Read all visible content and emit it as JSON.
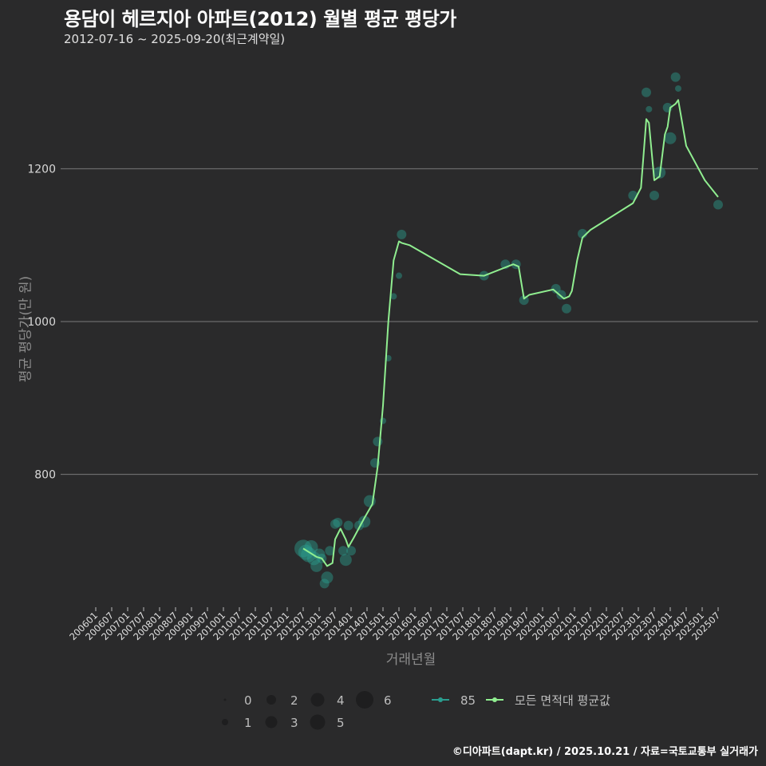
{
  "header": {
    "title": "용담이 헤르지아 아파트(2012) 월별 평균 평당가",
    "subtitle": "2012-07-16 ~ 2025-09-20(최근계약일)"
  },
  "footer": {
    "credit": "©디아파트(dapt.kr) / 2025.10.21 / 자료=국토교통부 실거래가"
  },
  "colors": {
    "background": "#2a2a2b",
    "grid": "#6b6b6b",
    "series_85": "#2a9d8f",
    "series_avg": "#90ee90",
    "point_fill": "#2a9d8f"
  },
  "chart_data": {
    "type": "line",
    "title": "용담이 헤르지아 아파트(2012) 월별 평균 평당가",
    "subtitle": "2012-07-16 ~ 2025-09-20(최근계약일)",
    "xlabel": "거래년월",
    "ylabel": "평균 평당가(만 원)",
    "yticks": [
      800,
      1000,
      1200
    ],
    "ylim": [
      630,
      1340
    ],
    "grid": "horizontal",
    "xticks": [
      "200601",
      "200607",
      "200701",
      "200707",
      "200801",
      "200807",
      "200901",
      "200907",
      "201001",
      "201007",
      "201101",
      "201107",
      "201201",
      "201207",
      "201301",
      "201307",
      "201401",
      "201407",
      "201501",
      "201507",
      "201601",
      "201607",
      "201701",
      "201707",
      "201801",
      "201807",
      "201901",
      "201907",
      "202001",
      "202007",
      "202101",
      "202107",
      "202201",
      "202207",
      "202301",
      "202307",
      "202401",
      "202407",
      "202501",
      "202507"
    ],
    "legend": {
      "size_title": "",
      "sizes": [
        "0",
        "1",
        "2",
        "3",
        "4",
        "5",
        "6"
      ],
      "series": [
        {
          "name": "85",
          "color": "#2a9d8f"
        },
        {
          "name": "모든 면적대 평균값",
          "color": "#90ee90"
        }
      ],
      "position": "bottom"
    },
    "series": [
      {
        "name": "85",
        "points": [
          {
            "x": "201207",
            "y": 703,
            "size": 6
          },
          {
            "x": "201208",
            "y": 698,
            "size": 5
          },
          {
            "x": "201209",
            "y": 695,
            "size": 5
          },
          {
            "x": "201210",
            "y": 705,
            "size": 4
          },
          {
            "x": "201211",
            "y": 690,
            "size": 4
          },
          {
            "x": "201212",
            "y": 680,
            "size": 3
          },
          {
            "x": "201301",
            "y": 695,
            "size": 3
          },
          {
            "x": "201302",
            "y": 690,
            "size": 2
          },
          {
            "x": "201303",
            "y": 657,
            "size": 2
          },
          {
            "x": "201304",
            "y": 665,
            "size": 3
          },
          {
            "x": "201305",
            "y": 700,
            "size": 2
          },
          {
            "x": "201307",
            "y": 735,
            "size": 2
          },
          {
            "x": "201308",
            "y": 737,
            "size": 2
          },
          {
            "x": "201310",
            "y": 700,
            "size": 2
          },
          {
            "x": "201311",
            "y": 688,
            "size": 3
          },
          {
            "x": "201312",
            "y": 733,
            "size": 2
          },
          {
            "x": "201401",
            "y": 700,
            "size": 2
          },
          {
            "x": "201404",
            "y": 733,
            "size": 2
          },
          {
            "x": "201406",
            "y": 738,
            "size": 3
          },
          {
            "x": "201408",
            "y": 765,
            "size": 3
          },
          {
            "x": "201410",
            "y": 815,
            "size": 2
          },
          {
            "x": "201411",
            "y": 843,
            "size": 2
          },
          {
            "x": "201501",
            "y": 870,
            "size": 1
          },
          {
            "x": "201503",
            "y": 952,
            "size": 1
          },
          {
            "x": "201505",
            "y": 1033,
            "size": 1
          },
          {
            "x": "201507",
            "y": 1060,
            "size": 1
          },
          {
            "x": "201508",
            "y": 1114,
            "size": 2
          },
          {
            "x": "201803",
            "y": 1060,
            "size": 2
          },
          {
            "x": "201811",
            "y": 1075,
            "size": 2
          },
          {
            "x": "201903",
            "y": 1075,
            "size": 2
          },
          {
            "x": "201906",
            "y": 1028,
            "size": 2
          },
          {
            "x": "202006",
            "y": 1043,
            "size": 2
          },
          {
            "x": "202008",
            "y": 1035,
            "size": 2
          },
          {
            "x": "202010",
            "y": 1017,
            "size": 2
          },
          {
            "x": "202104",
            "y": 1115,
            "size": 2
          },
          {
            "x": "202211",
            "y": 1165,
            "size": 2
          },
          {
            "x": "202304",
            "y": 1300,
            "size": 2
          },
          {
            "x": "202305",
            "y": 1278,
            "size": 1
          },
          {
            "x": "202307",
            "y": 1165,
            "size": 2
          },
          {
            "x": "202309",
            "y": 1195,
            "size": 3
          },
          {
            "x": "202312",
            "y": 1280,
            "size": 2
          },
          {
            "x": "202401",
            "y": 1240,
            "size": 3
          },
          {
            "x": "202403",
            "y": 1320,
            "size": 2
          },
          {
            "x": "202404",
            "y": 1305,
            "size": 1
          },
          {
            "x": "202507",
            "y": 1153,
            "size": 2
          }
        ]
      },
      {
        "name": "모든 면적대 평균값",
        "x": [
          "201207",
          "201212",
          "201302",
          "201304",
          "201306",
          "201307",
          "201309",
          "201311",
          "201312",
          "201402",
          "201406",
          "201409",
          "201411",
          "201501",
          "201503",
          "201505",
          "201507",
          "201508",
          "201511",
          "201706",
          "201803",
          "201902",
          "201904",
          "201906",
          "201908",
          "202005",
          "202009",
          "202011",
          "202012",
          "202102",
          "202104",
          "202107",
          "202211",
          "202302",
          "202303",
          "202304",
          "202305",
          "202307",
          "202309",
          "202311",
          "202312",
          "202401",
          "202403",
          "202404",
          "202407",
          "202502",
          "202507"
        ],
        "values": [
          703,
          692,
          690,
          680,
          684,
          715,
          729,
          715,
          705,
          717,
          743,
          761,
          810,
          890,
          1000,
          1080,
          1105,
          1103,
          1100,
          1062,
          1060,
          1075,
          1072,
          1030,
          1035,
          1042,
          1030,
          1033,
          1040,
          1080,
          1110,
          1120,
          1155,
          1175,
          1220,
          1265,
          1260,
          1185,
          1190,
          1245,
          1255,
          1280,
          1285,
          1290,
          1230,
          1185,
          1163
        ]
      }
    ]
  }
}
